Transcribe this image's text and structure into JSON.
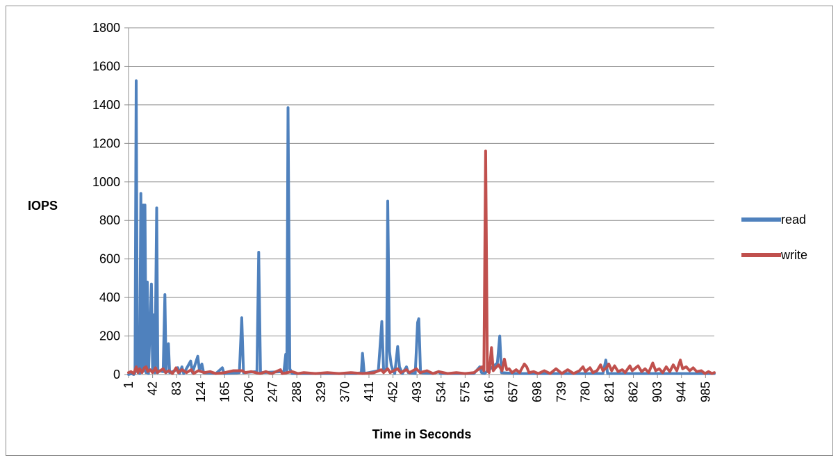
{
  "chart_data": {
    "type": "line",
    "title": "",
    "xlabel": "Time in Seconds",
    "ylabel": "IOPS",
    "ylim": [
      0,
      1800
    ],
    "yticks": [
      0,
      200,
      400,
      600,
      800,
      1000,
      1200,
      1400,
      1600,
      1800
    ],
    "xlim": [
      1,
      1000
    ],
    "xtick_labels": [
      "1",
      "42",
      "83",
      "124",
      "165",
      "206",
      "247",
      "288",
      "329",
      "370",
      "411",
      "452",
      "493",
      "534",
      "575",
      "616",
      "657",
      "698",
      "739",
      "780",
      "821",
      "862",
      "903",
      "944",
      "985"
    ],
    "grid": "horizontal",
    "legend_position": "right",
    "series": [
      {
        "name": "read",
        "color": "#4f81bd",
        "points": [
          [
            1,
            0
          ],
          [
            6,
            5
          ],
          [
            10,
            0
          ],
          [
            12,
            10
          ],
          [
            14,
            1525
          ],
          [
            16,
            20
          ],
          [
            18,
            230
          ],
          [
            20,
            5
          ],
          [
            22,
            940
          ],
          [
            24,
            30
          ],
          [
            26,
            880
          ],
          [
            28,
            20
          ],
          [
            29,
            880
          ],
          [
            31,
            10
          ],
          [
            33,
            480
          ],
          [
            35,
            5
          ],
          [
            40,
            470
          ],
          [
            42,
            20
          ],
          [
            44,
            310
          ],
          [
            46,
            10
          ],
          [
            49,
            865
          ],
          [
            51,
            10
          ],
          [
            53,
            20
          ],
          [
            60,
            15
          ],
          [
            63,
            415
          ],
          [
            65,
            10
          ],
          [
            67,
            130
          ],
          [
            69,
            160
          ],
          [
            71,
            10
          ],
          [
            80,
            20
          ],
          [
            85,
            35
          ],
          [
            88,
            5
          ],
          [
            92,
            40
          ],
          [
            95,
            5
          ],
          [
            107,
            70
          ],
          [
            110,
            10
          ],
          [
            119,
            95
          ],
          [
            122,
            20
          ],
          [
            126,
            55
          ],
          [
            129,
            10
          ],
          [
            150,
            5
          ],
          [
            161,
            35
          ],
          [
            164,
            5
          ],
          [
            190,
            10
          ],
          [
            194,
            295
          ],
          [
            197,
            10
          ],
          [
            220,
            15
          ],
          [
            223,
            635
          ],
          [
            226,
            10
          ],
          [
            266,
            15
          ],
          [
            269,
            105
          ],
          [
            271,
            20
          ],
          [
            273,
            1385
          ],
          [
            276,
            30
          ],
          [
            280,
            5
          ],
          [
            300,
            5
          ],
          [
            330,
            5
          ],
          [
            360,
            5
          ],
          [
            390,
            5
          ],
          [
            398,
            10
          ],
          [
            400,
            110
          ],
          [
            403,
            5
          ],
          [
            427,
            20
          ],
          [
            433,
            275
          ],
          [
            436,
            20
          ],
          [
            441,
            30
          ],
          [
            443,
            900
          ],
          [
            446,
            120
          ],
          [
            449,
            50
          ],
          [
            452,
            20
          ],
          [
            455,
            5
          ],
          [
            460,
            145
          ],
          [
            463,
            40
          ],
          [
            468,
            5
          ],
          [
            475,
            40
          ],
          [
            478,
            10
          ],
          [
            490,
            5
          ],
          [
            494,
            270
          ],
          [
            496,
            290
          ],
          [
            499,
            10
          ],
          [
            520,
            5
          ],
          [
            530,
            15
          ],
          [
            533,
            5
          ],
          [
            560,
            5
          ],
          [
            590,
            5
          ],
          [
            600,
            40
          ],
          [
            603,
            10
          ],
          [
            608,
            5
          ],
          [
            630,
            60
          ],
          [
            634,
            200
          ],
          [
            637,
            10
          ],
          [
            660,
            5
          ],
          [
            700,
            5
          ],
          [
            760,
            5
          ],
          [
            810,
            5
          ],
          [
            815,
            75
          ],
          [
            818,
            5
          ],
          [
            850,
            5
          ],
          [
            900,
            5
          ],
          [
            950,
            5
          ],
          [
            1000,
            5
          ]
        ]
      },
      {
        "name": "write",
        "color": "#c0504d",
        "points": [
          [
            1,
            10
          ],
          [
            5,
            15
          ],
          [
            10,
            5
          ],
          [
            14,
            40
          ],
          [
            17,
            10
          ],
          [
            20,
            30
          ],
          [
            24,
            10
          ],
          [
            28,
            35
          ],
          [
            31,
            40
          ],
          [
            34,
            15
          ],
          [
            38,
            25
          ],
          [
            42,
            10
          ],
          [
            47,
            35
          ],
          [
            50,
            10
          ],
          [
            55,
            20
          ],
          [
            60,
            30
          ],
          [
            64,
            10
          ],
          [
            70,
            20
          ],
          [
            76,
            5
          ],
          [
            82,
            35
          ],
          [
            86,
            10
          ],
          [
            92,
            25
          ],
          [
            100,
            10
          ],
          [
            108,
            25
          ],
          [
            112,
            5
          ],
          [
            120,
            20
          ],
          [
            130,
            10
          ],
          [
            140,
            15
          ],
          [
            150,
            5
          ],
          [
            165,
            10
          ],
          [
            180,
            20
          ],
          [
            195,
            20
          ],
          [
            200,
            10
          ],
          [
            210,
            15
          ],
          [
            225,
            5
          ],
          [
            235,
            15
          ],
          [
            245,
            5
          ],
          [
            260,
            25
          ],
          [
            263,
            5
          ],
          [
            280,
            15
          ],
          [
            290,
            5
          ],
          [
            300,
            10
          ],
          [
            320,
            5
          ],
          [
            340,
            10
          ],
          [
            360,
            5
          ],
          [
            380,
            10
          ],
          [
            400,
            5
          ],
          [
            420,
            10
          ],
          [
            432,
            25
          ],
          [
            436,
            10
          ],
          [
            443,
            30
          ],
          [
            447,
            10
          ],
          [
            460,
            30
          ],
          [
            465,
            10
          ],
          [
            475,
            25
          ],
          [
            480,
            10
          ],
          [
            492,
            30
          ],
          [
            498,
            10
          ],
          [
            510,
            20
          ],
          [
            520,
            5
          ],
          [
            530,
            15
          ],
          [
            545,
            5
          ],
          [
            560,
            10
          ],
          [
            575,
            5
          ],
          [
            590,
            10
          ],
          [
            604,
            40
          ],
          [
            607,
            20
          ],
          [
            610,
            1160
          ],
          [
            613,
            20
          ],
          [
            616,
            10
          ],
          [
            620,
            140
          ],
          [
            623,
            20
          ],
          [
            627,
            35
          ],
          [
            632,
            50
          ],
          [
            638,
            20
          ],
          [
            642,
            80
          ],
          [
            646,
            25
          ],
          [
            650,
            30
          ],
          [
            655,
            10
          ],
          [
            662,
            25
          ],
          [
            668,
            10
          ],
          [
            676,
            55
          ],
          [
            680,
            40
          ],
          [
            684,
            10
          ],
          [
            692,
            15
          ],
          [
            700,
            5
          ],
          [
            710,
            20
          ],
          [
            720,
            5
          ],
          [
            730,
            30
          ],
          [
            740,
            5
          ],
          [
            750,
            25
          ],
          [
            760,
            5
          ],
          [
            770,
            20
          ],
          [
            776,
            40
          ],
          [
            780,
            15
          ],
          [
            788,
            35
          ],
          [
            793,
            10
          ],
          [
            800,
            20
          ],
          [
            806,
            50
          ],
          [
            810,
            20
          ],
          [
            816,
            35
          ],
          [
            820,
            55
          ],
          [
            825,
            20
          ],
          [
            830,
            45
          ],
          [
            836,
            15
          ],
          [
            843,
            25
          ],
          [
            848,
            10
          ],
          [
            856,
            45
          ],
          [
            860,
            20
          ],
          [
            866,
            35
          ],
          [
            870,
            45
          ],
          [
            876,
            15
          ],
          [
            882,
            30
          ],
          [
            888,
            10
          ],
          [
            895,
            60
          ],
          [
            900,
            20
          ],
          [
            906,
            30
          ],
          [
            912,
            10
          ],
          [
            918,
            40
          ],
          [
            924,
            15
          ],
          [
            930,
            50
          ],
          [
            936,
            20
          ],
          [
            942,
            75
          ],
          [
            946,
            30
          ],
          [
            952,
            40
          ],
          [
            958,
            20
          ],
          [
            964,
            35
          ],
          [
            970,
            15
          ],
          [
            978,
            20
          ],
          [
            984,
            5
          ],
          [
            990,
            15
          ],
          [
            996,
            5
          ],
          [
            1000,
            10
          ]
        ]
      }
    ]
  }
}
